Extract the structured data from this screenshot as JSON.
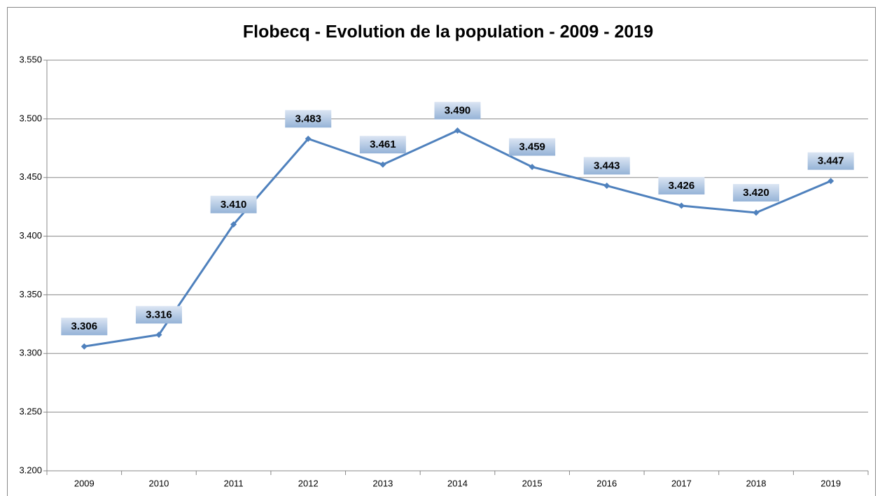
{
  "chart_data": {
    "type": "line",
    "title": "Flobecq - Evolution de la population - 2009 - 2019",
    "categories": [
      "2009",
      "2010",
      "2011",
      "2012",
      "2013",
      "2014",
      "2015",
      "2016",
      "2017",
      "2018",
      "2019"
    ],
    "series": [
      {
        "name": "Population",
        "color": "#4f81bd",
        "values": [
          3306,
          3316,
          3410,
          3483,
          3461,
          3490,
          3459,
          3443,
          3426,
          3420,
          3447
        ],
        "value_labels": [
          "3.306",
          "3.316",
          "3.410",
          "3.483",
          "3.461",
          "3.490",
          "3.459",
          "3.443",
          "3.426",
          "3.420",
          "3.447"
        ]
      }
    ],
    "ylim": [
      3200,
      3550
    ],
    "yticks": [
      {
        "value": 3200,
        "label": "3.200"
      },
      {
        "value": 3250,
        "label": "3.250"
      },
      {
        "value": 3300,
        "label": "3.300"
      },
      {
        "value": 3350,
        "label": "3.350"
      },
      {
        "value": 3400,
        "label": "3.400"
      },
      {
        "value": 3450,
        "label": "3.450"
      },
      {
        "value": 3500,
        "label": "3.500"
      },
      {
        "value": 3550,
        "label": "3.550"
      }
    ],
    "grid": true
  }
}
